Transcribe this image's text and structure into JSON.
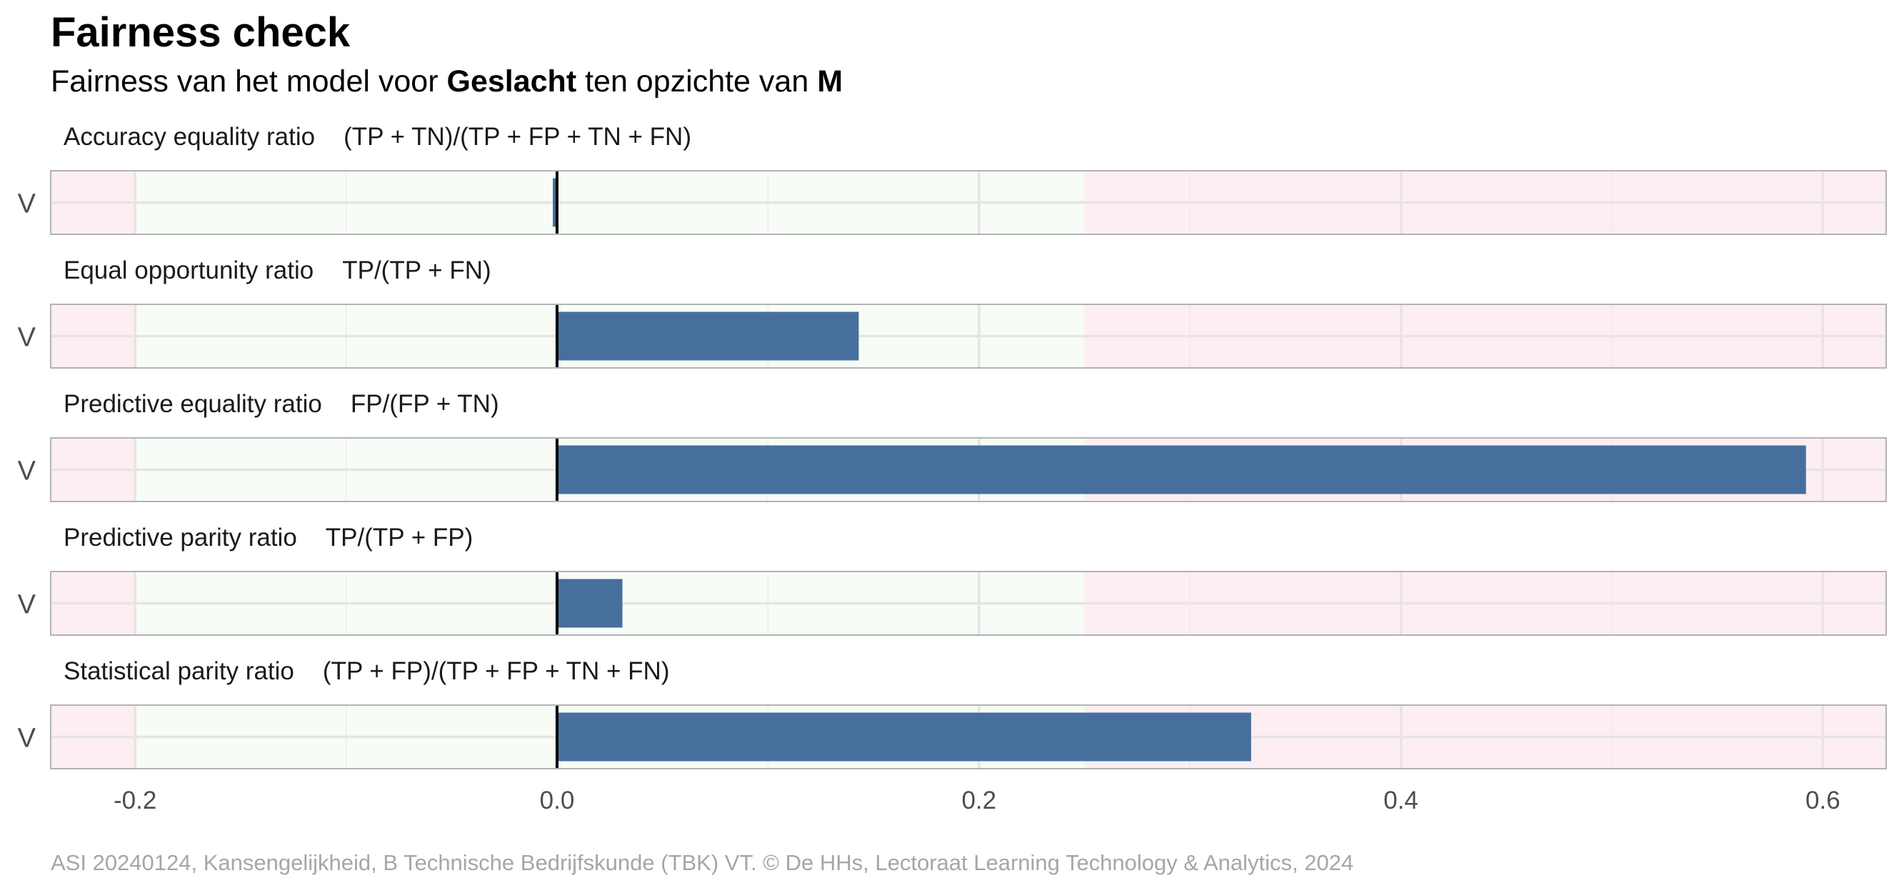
{
  "title": "Fairness check",
  "subtitle": {
    "prefix": "Fairness van het model voor ",
    "variable": "Geslacht",
    "middle": " ten opzichte van ",
    "reference": "M"
  },
  "caption": "ASI 20240124, Kansengelijkheid, B Technische Bedrijfskunde (TBK) VT. © De HHs, Lectoraat Learning Technology & Analytics, 2024",
  "colors": {
    "bar": "#466f9d",
    "fair_zone": "#f7fcf7",
    "unfair_zone": "#fdeef1",
    "grid": "#e6e4e4",
    "panel_border": "#b3b3b3",
    "zero_line": "#000000"
  },
  "chart_data": {
    "type": "bar",
    "orientation": "horizontal",
    "xlim": [
      -0.24,
      0.63
    ],
    "fair_range": [
      -0.2,
      0.25
    ],
    "xticks": [
      {
        "value": -0.2,
        "label": "-0.2"
      },
      {
        "value": 0.0,
        "label": "0.0"
      },
      {
        "value": 0.2,
        "label": "0.2"
      },
      {
        "value": 0.4,
        "label": "0.4"
      },
      {
        "value": 0.6,
        "label": "0.6"
      }
    ],
    "panels": [
      {
        "metric": "Accuracy equality ratio",
        "formula": "(TP + TN)/(TP + FP + TN + FN)",
        "category": "V",
        "value": -0.002
      },
      {
        "metric": "Equal opportunity ratio",
        "formula": "TP/(TP + FN)",
        "category": "V",
        "value": 0.143
      },
      {
        "metric": "Predictive equality ratio",
        "formula": "FP/(FP + TN)",
        "category": "V",
        "value": 0.592
      },
      {
        "metric": "Predictive parity ratio",
        "formula": "TP/(TP + FP)",
        "category": "V",
        "value": 0.031
      },
      {
        "metric": "Statistical parity ratio",
        "formula": "(TP + FP)/(TP + FP + TN + FN)",
        "category": "V",
        "value": 0.329
      }
    ]
  }
}
